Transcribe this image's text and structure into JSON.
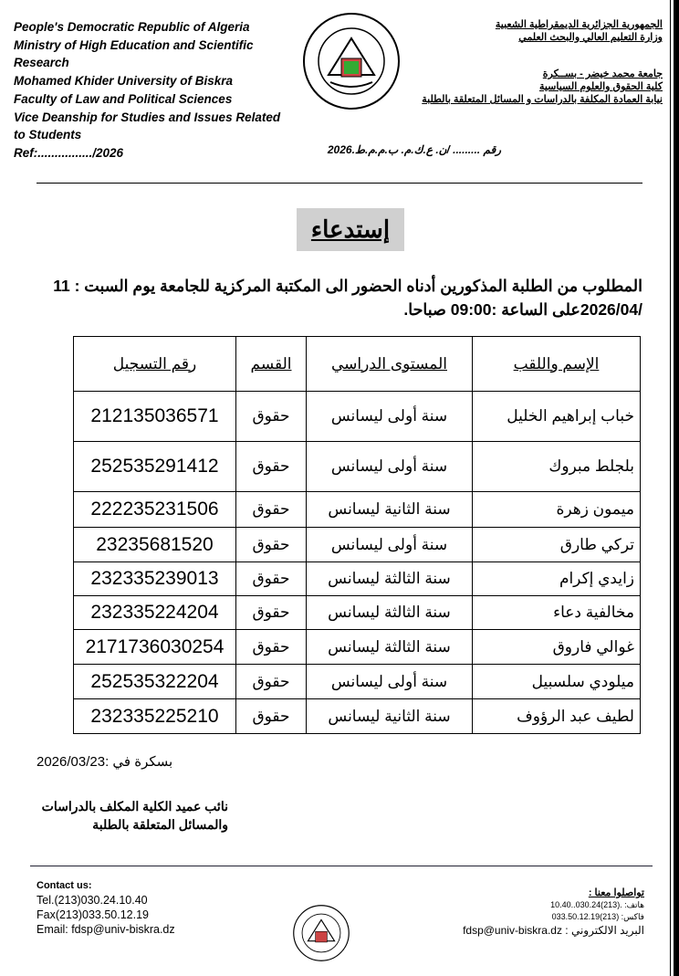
{
  "header": {
    "en_lines": [
      "People's Democratic Republic of Algeria",
      "Ministry of High Education and Scientific Research",
      "Mohamed Khider University of Biskra",
      "Faculty of Law and Political Sciences",
      "Vice Deanship for Studies and Issues Related to Students",
      "Ref:................/2026"
    ],
    "ar_top": [
      "الجمهورية الجزائرية الديمقراطية الشعبية",
      "وزارة  التعليم العالي والبحث العلمي"
    ],
    "ar_mid": [
      "جامعة محمد خيضر - بســكرة",
      "كلية الحقوق والعلوم السياسية",
      "نيابة العمادة المكلفة  بالدراسات و المسائل المتعلقة بالطلبة"
    ],
    "ar_ref": "رقم ......... /ن. ع.ك.م. ب.م.م.ط.2026"
  },
  "title": "إستدعاء",
  "intro": "المطلوب من الطلبة المذكورين أدناه الحضور الى المكتبة المركزية للجامعة يوم السبت  : 11 /2026/04على الساعة :09:00 صباحا.",
  "table": {
    "headers": [
      "الإسم واللقب",
      "المستوى الدراسي",
      "القسم",
      "رقم التسجيل"
    ],
    "rows": [
      [
        "خباب إبراهيم الخليل",
        "سنة أولى  ليسانس",
        "حقوق",
        "212135036571"
      ],
      [
        "بلجلط مبروك",
        "سنة  أولى  ليسانس",
        "حقوق",
        "252535291412"
      ],
      [
        "ميمون زهرة",
        "سنة  الثانية ليسانس",
        "حقوق",
        "222235231506"
      ],
      [
        "تركي طارق",
        "سنة أولى  ليسانس",
        "حقوق",
        "23235681520"
      ],
      [
        "زايدي إكرام",
        "سنة الثالثة ليسانس",
        "حقوق",
        "232335239013"
      ],
      [
        "مخالفية دعاء",
        "سنة الثالثة ليسانس",
        "حقوق",
        "232335224204"
      ],
      [
        "غوالي فاروق",
        "سنة  الثالثة  ليسانس",
        "حقوق",
        "2171736030254"
      ],
      [
        "ميلودي سلسبيل",
        "سنة أولى  ليسانس",
        "حقوق",
        "252535322204"
      ],
      [
        "لطيف عبد الرؤوف",
        "سنة الثانية ليسانس",
        "حقوق",
        "232335225210"
      ]
    ]
  },
  "date": "بسكرة في :2026/03/23",
  "signature": [
    "نائب عميد الكلية المكلف بالدراسات",
    "والمسائل المتعلقة بالطلبة"
  ],
  "contact_en": {
    "title": "Contact us:",
    "tel": "Tel.(213)030.24.10.40",
    "fax": "Fax(213)033.50.12.19",
    "email": "Email: fdsp@univ-biskra.dz"
  },
  "contact_ar": {
    "title": "تواصلوا معنا :",
    "tel": "هاتف: .(213)030.24..10.40",
    "fax": "فاكس: (213)033.50.12.19",
    "email": "البريد الالكتروني : fdsp@univ-biskra.dz"
  },
  "logo_text": "جامعة محمد خيضر - بسكرة - كلية الحقوق و العلوم السياسية"
}
